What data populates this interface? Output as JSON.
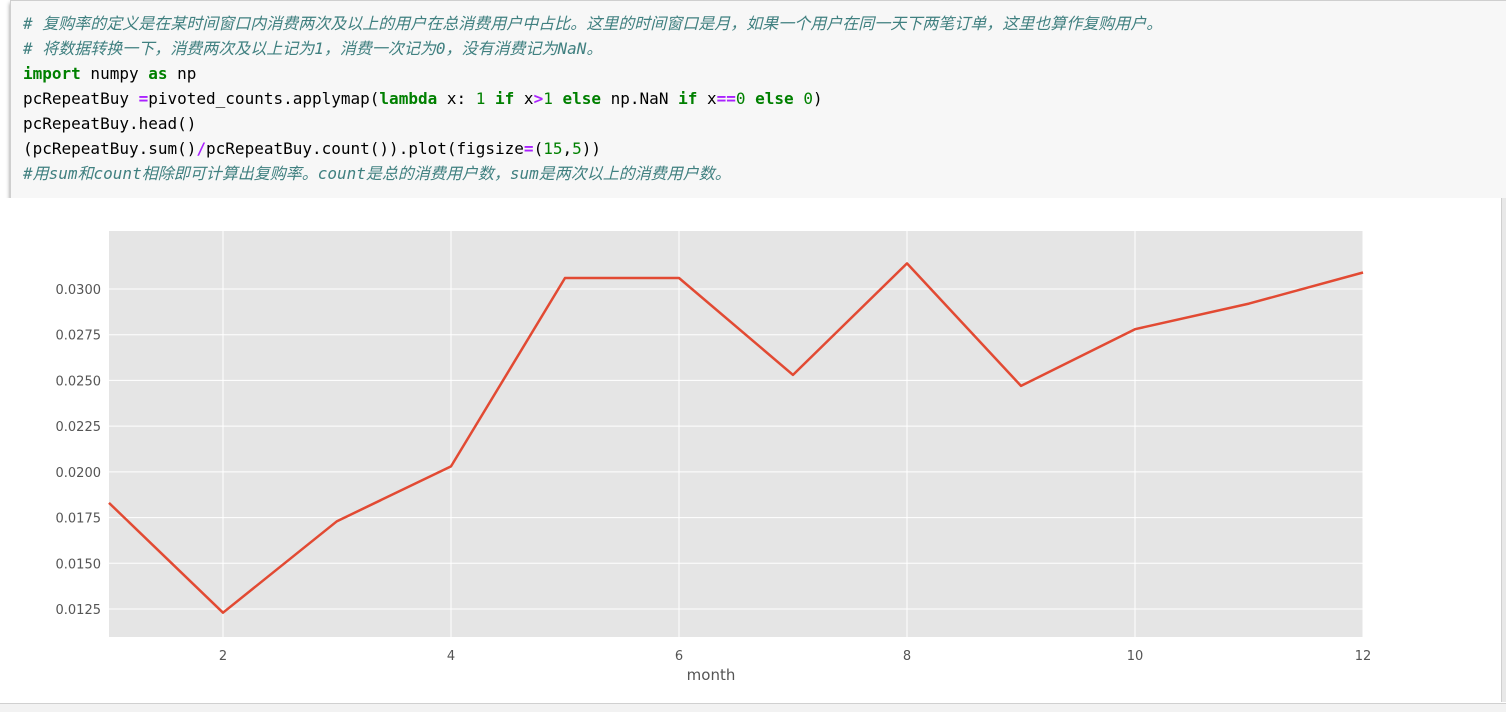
{
  "code_cell": {
    "lines": [
      [
        {
          "t": "comment",
          "v": "# 复购率的定义是在某时间窗口内消费两次及以上的用户在总消费用户中占比。这里的时间窗口是月，如果一个用户在同一天下两笔订单，这里也算作复购用户。"
        }
      ],
      [
        {
          "t": "comment",
          "v": "# 将数据转换一下，消费两次及以上记为1，消费一次记为0，没有消费记为NaN。"
        }
      ],
      [
        {
          "t": "kw",
          "v": "import"
        },
        {
          "t": "plain",
          "v": " numpy "
        },
        {
          "t": "kw",
          "v": "as"
        },
        {
          "t": "plain",
          "v": " np"
        }
      ],
      [
        {
          "t": "plain",
          "v": "pcRepeatBuy "
        },
        {
          "t": "op",
          "v": "="
        },
        {
          "t": "plain",
          "v": "pivoted_counts.applymap("
        },
        {
          "t": "kw",
          "v": "lambda"
        },
        {
          "t": "plain",
          "v": " x: "
        },
        {
          "t": "num",
          "v": "1"
        },
        {
          "t": "plain",
          "v": " "
        },
        {
          "t": "kw",
          "v": "if"
        },
        {
          "t": "plain",
          "v": " x"
        },
        {
          "t": "op",
          "v": ">"
        },
        {
          "t": "num",
          "v": "1"
        },
        {
          "t": "plain",
          "v": " "
        },
        {
          "t": "kw",
          "v": "else"
        },
        {
          "t": "plain",
          "v": " np.NaN "
        },
        {
          "t": "kw",
          "v": "if"
        },
        {
          "t": "plain",
          "v": " x"
        },
        {
          "t": "op",
          "v": "=="
        },
        {
          "t": "num",
          "v": "0"
        },
        {
          "t": "plain",
          "v": " "
        },
        {
          "t": "kw",
          "v": "else"
        },
        {
          "t": "plain",
          "v": " "
        },
        {
          "t": "num",
          "v": "0"
        },
        {
          "t": "plain",
          "v": ")"
        }
      ],
      [
        {
          "t": "plain",
          "v": "pcRepeatBuy.head()"
        }
      ],
      [
        {
          "t": "plain",
          "v": "(pcRepeatBuy.sum()"
        },
        {
          "t": "op",
          "v": "/"
        },
        {
          "t": "plain",
          "v": "pcRepeatBuy.count()).plot(figsize"
        },
        {
          "t": "op",
          "v": "="
        },
        {
          "t": "plain",
          "v": "("
        },
        {
          "t": "num",
          "v": "15"
        },
        {
          "t": "plain",
          "v": ","
        },
        {
          "t": "num",
          "v": "5"
        },
        {
          "t": "plain",
          "v": "))"
        }
      ],
      [
        {
          "t": "comment",
          "v": "#用sum和count相除即可计算出复购率。count是总的消费用户数，sum是两次以上的消费用户数。"
        }
      ]
    ]
  },
  "chart_data": {
    "type": "line",
    "xlabel": "month",
    "ylabel": "",
    "title": "",
    "x": [
      1,
      2,
      3,
      4,
      5,
      6,
      7,
      8,
      9,
      10,
      11,
      12
    ],
    "series": [
      {
        "values": [
          0.0183,
          0.0123,
          0.0173,
          0.0203,
          0.0306,
          0.0306,
          0.0253,
          0.0314,
          0.0247,
          0.0278,
          0.0292,
          0.0309
        ],
        "color": "#e24a33"
      }
    ],
    "xticks": [
      2,
      4,
      6,
      8,
      10,
      12
    ],
    "xtick_labels": [
      "2",
      "4",
      "6",
      "8",
      "10",
      "12"
    ],
    "yticks": [
      0.0125,
      0.015,
      0.0175,
      0.02,
      0.0225,
      0.025,
      0.0275,
      0.03
    ],
    "ytick_labels": [
      "0.0125",
      "0.0150",
      "0.0175",
      "0.0200",
      "0.0225",
      "0.0250",
      "0.0275",
      "0.0300"
    ],
    "xlim": [
      1,
      12
    ],
    "ylim": [
      0.01097,
      0.03317
    ],
    "grid": true,
    "style": "ggplot",
    "plot_background": "#e5e5e5",
    "grid_color": "#ffffff"
  }
}
